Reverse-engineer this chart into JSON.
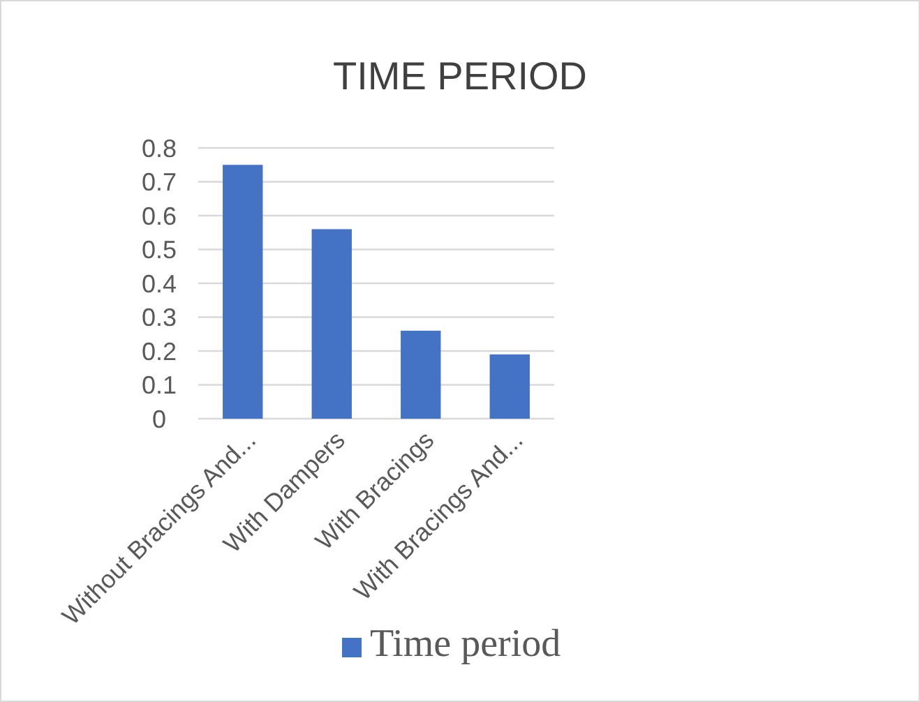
{
  "chart_data": {
    "type": "bar",
    "title": "TIME PERIOD",
    "categories": [
      "Without Bracings And...",
      "With Dampers",
      "With Bracings",
      "With Bracings And..."
    ],
    "series": [
      {
        "name": "Time period",
        "color": "#4472c4",
        "values": [
          0.75,
          0.56,
          0.26,
          0.19
        ]
      }
    ],
    "ylim": [
      0,
      0.8
    ],
    "yticks": [
      0,
      0.1,
      0.2,
      0.3,
      0.4,
      0.5,
      0.6,
      0.7,
      0.8
    ],
    "grid": "y",
    "legend": "bottom"
  }
}
